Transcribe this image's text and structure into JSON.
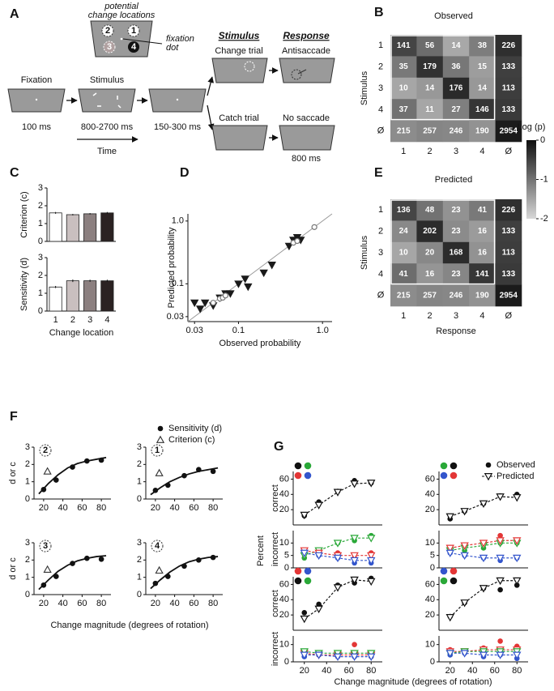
{
  "panel_a": {
    "label": "A",
    "inset": {
      "title_lines": [
        "potential",
        "change locations"
      ],
      "locations": [
        "2",
        "1",
        "3",
        "4"
      ],
      "fixation_lines": [
        "fixation",
        "dot"
      ]
    },
    "sequence": [
      {
        "title": "Fixation",
        "duration": "100 ms"
      },
      {
        "title": "Stimulus",
        "duration": "800-2700 ms"
      },
      {
        "duration": "150-300 ms"
      }
    ],
    "time": "Time",
    "headers": [
      "Stimulus",
      "Response"
    ],
    "trials": [
      {
        "stimulus": "Change trial",
        "response": "Antisaccade"
      },
      {
        "stimulus": "Catch trial",
        "response": "No saccade",
        "duration": "800 ms"
      }
    ]
  },
  "chart_data": [
    {
      "type": "heatmap",
      "panel": "B",
      "title": "Observed",
      "ylabel": "Stimulus",
      "rows": [
        "1",
        "2",
        "3",
        "4",
        "Ø"
      ],
      "columns": [
        "1",
        "2",
        "3",
        "4",
        "Ø"
      ],
      "values": [
        [
          141,
          56,
          14,
          38,
          226
        ],
        [
          35,
          179,
          36,
          15,
          133
        ],
        [
          10,
          14,
          176,
          14,
          113
        ],
        [
          37,
          11,
          27,
          146,
          133
        ],
        [
          215,
          257,
          246,
          190,
          2954
        ]
      ]
    },
    {
      "type": "heatmap",
      "panel": "E",
      "title": "Predicted",
      "ylabel": "Stimulus",
      "xlabel": "Response",
      "rows": [
        "1",
        "2",
        "3",
        "4",
        "Ø"
      ],
      "columns": [
        "1",
        "2",
        "3",
        "4",
        "Ø"
      ],
      "values": [
        [
          136,
          48,
          23,
          41,
          226
        ],
        [
          24,
          202,
          23,
          16,
          133
        ],
        [
          10,
          20,
          168,
          16,
          113
        ],
        [
          41,
          16,
          23,
          141,
          133
        ],
        [
          215,
          257,
          246,
          190,
          2954
        ]
      ],
      "colorbar": {
        "label": "Log (p)",
        "lim": [
          -2,
          0
        ],
        "ticks": [
          0,
          -1,
          -2
        ]
      }
    },
    {
      "type": "bar",
      "panel": "C",
      "ylabel": "Criterion (c)",
      "values": [
        1.6,
        1.5,
        1.55,
        1.6
      ],
      "errors": [
        0.05,
        0.04,
        0.04,
        0.05
      ],
      "colors": [
        "#ffffff",
        "#c9bfbf",
        "#8c8080",
        "#2b2222"
      ],
      "ylim": [
        0,
        3
      ],
      "yticks": [
        0,
        1,
        2,
        3
      ]
    },
    {
      "type": "bar",
      "ylabel": "Sensitivity (d)",
      "xlabel": "Change location",
      "categories": [
        "1",
        "2",
        "3",
        "4"
      ],
      "values": [
        1.35,
        1.7,
        1.7,
        1.7
      ],
      "errors": [
        0.06,
        0.07,
        0.06,
        0.06
      ],
      "colors": [
        "#ffffff",
        "#c9bfbf",
        "#8c8080",
        "#2b2222"
      ],
      "ylim": [
        0,
        3
      ],
      "yticks": [
        0,
        1,
        2,
        3
      ]
    },
    {
      "type": "scatter",
      "panel": "D",
      "xlabel": "Observed probability",
      "ylabel": "Predicted probability",
      "log_scale": true,
      "xlim": [
        0.025,
        1.3
      ],
      "ylim": [
        0.025,
        1.3
      ],
      "xticks": [
        0.03,
        0.1,
        {
          "value": 1,
          "label": "1.0"
        }
      ],
      "yticks": [
        0.03,
        0.1,
        {
          "value": 1,
          "label": "1.0"
        }
      ],
      "series": [
        {
          "marker": "triangle_down",
          "color": "#1a1a1a",
          "x": [
            0.03,
            0.035,
            0.04,
            0.05,
            0.06,
            0.07,
            0.08,
            0.1,
            0.12,
            0.13,
            0.2,
            0.25,
            0.4,
            0.45,
            0.5,
            0.55
          ],
          "values": [
            0.05,
            0.04,
            0.05,
            0.045,
            0.06,
            0.07,
            0.07,
            0.1,
            0.12,
            0.09,
            0.15,
            0.2,
            0.4,
            0.5,
            0.55,
            0.5
          ]
        },
        {
          "marker": "open_circle",
          "color": "#777777",
          "x": [
            0.05,
            0.06,
            0.065,
            0.07,
            0.45,
            0.5,
            0.8
          ],
          "values": [
            0.05,
            0.058,
            0.06,
            0.065,
            0.45,
            0.48,
            0.8
          ]
        }
      ]
    },
    {
      "type": "line",
      "panel": "F",
      "location": "2",
      "ylabel": "d or c",
      "xlim": [
        10,
        90
      ],
      "xticks": [
        20,
        40,
        60,
        80
      ],
      "ylim": [
        0,
        3
      ],
      "yticks": [
        0,
        1,
        2,
        3
      ],
      "series": [
        {
          "marker": "none",
          "color": "#111111",
          "x": [
            15,
            25,
            35,
            45,
            55,
            65,
            75,
            85
          ],
          "values": [
            0.3,
            0.9,
            1.4,
            1.8,
            2.05,
            2.2,
            2.3,
            2.4
          ]
        },
        {
          "marker": "circle",
          "color": "#111111",
          "x": [
            20,
            33,
            50,
            65,
            80
          ],
          "values": [
            0.55,
            1.1,
            1.85,
            2.2,
            2.25
          ]
        },
        {
          "marker": "open_triangle_up",
          "color": "#333333",
          "x": [
            24
          ],
          "values": [
            1.6
          ]
        }
      ]
    },
    {
      "type": "line",
      "location": "1",
      "xlim": [
        10,
        90
      ],
      "xticks": [
        20,
        40,
        60,
        80
      ],
      "ylim": [
        0,
        3
      ],
      "yticks": [
        0,
        1,
        2,
        3
      ],
      "series": [
        {
          "marker": "none",
          "color": "#111111",
          "x": [
            15,
            25,
            35,
            45,
            55,
            65,
            75,
            85
          ],
          "values": [
            0.25,
            0.65,
            1.0,
            1.25,
            1.45,
            1.6,
            1.7,
            1.8
          ]
        },
        {
          "name": "Sensitivity (d)",
          "marker": "circle",
          "color": "#111111",
          "x": [
            20,
            33,
            50,
            65,
            80
          ],
          "values": [
            0.5,
            0.8,
            1.35,
            1.7,
            1.6
          ]
        },
        {
          "name": "Criterion (c)",
          "marker": "open_triangle_up",
          "color": "#333333",
          "x": [
            24
          ],
          "values": [
            1.5
          ]
        }
      ]
    },
    {
      "type": "line",
      "location": "3",
      "ylabel": "d or c",
      "xlabel": "Change magnitude (degrees of rotation)",
      "xlim": [
        10,
        90
      ],
      "xticks": [
        20,
        40,
        60,
        80
      ],
      "ylim": [
        0,
        3
      ],
      "yticks": [
        0,
        1,
        2,
        3
      ],
      "series": [
        {
          "marker": "none",
          "color": "#111111",
          "x": [
            15,
            25,
            35,
            45,
            55,
            65,
            75,
            85
          ],
          "values": [
            0.3,
            0.85,
            1.35,
            1.7,
            1.95,
            2.1,
            2.2,
            2.25
          ]
        },
        {
          "marker": "circle",
          "color": "#111111",
          "x": [
            20,
            33,
            50,
            65,
            80
          ],
          "values": [
            0.55,
            1.05,
            1.8,
            2.1,
            2.05
          ]
        },
        {
          "marker": "open_triangle_up",
          "color": "#333333",
          "x": [
            24
          ],
          "values": [
            1.45
          ]
        }
      ]
    },
    {
      "type": "line",
      "location": "4",
      "xlim": [
        10,
        90
      ],
      "xticks": [
        20,
        40,
        60,
        80
      ],
      "ylim": [
        0,
        3
      ],
      "yticks": [
        0,
        1,
        2,
        3
      ],
      "series": [
        {
          "marker": "none",
          "color": "#111111",
          "x": [
            15,
            25,
            35,
            45,
            55,
            65,
            75,
            85
          ],
          "values": [
            0.35,
            0.85,
            1.3,
            1.65,
            1.9,
            2.05,
            2.15,
            2.2
          ]
        },
        {
          "marker": "circle",
          "color": "#111111",
          "x": [
            20,
            33,
            50,
            65,
            80
          ],
          "values": [
            0.65,
            1.05,
            1.65,
            2.0,
            2.15
          ]
        },
        {
          "marker": "open_triangle_up",
          "color": "#333333",
          "x": [
            24
          ],
          "values": [
            1.4
          ]
        }
      ]
    },
    {
      "type": "line",
      "panel": "G",
      "group_label": "Percent",
      "ylabel": "correct",
      "x": [
        20,
        33,
        50,
        65,
        80
      ],
      "xlim": [
        10,
        90
      ],
      "ylim": [
        0,
        70
      ],
      "yticks": [
        20,
        40,
        60
      ],
      "series": [
        {
          "marker": "circle",
          "color": "#111111",
          "values": [
            12,
            30,
            44,
            58,
            55
          ]
        },
        {
          "marker": "open_triangle_down",
          "line": "dashed",
          "color": "#111111",
          "values": [
            13,
            26,
            43,
            54,
            55
          ]
        }
      ]
    },
    {
      "type": "line",
      "x": [
        20,
        33,
        50,
        65,
        80
      ],
      "xlim": [
        10,
        90
      ],
      "ylim": [
        0,
        70
      ],
      "yticks": [
        20,
        40,
        60
      ],
      "series": [
        {
          "name": "Observed",
          "marker": "circle",
          "color": "#111111",
          "values": [
            8,
            18,
            28,
            38,
            40
          ]
        },
        {
          "name": "Predicted",
          "marker": "open_triangle_down",
          "line": "dashed",
          "color": "#111111",
          "values": [
            11,
            18,
            28,
            37,
            36
          ]
        }
      ]
    },
    {
      "type": "line",
      "ylabel": "incorrect",
      "x": [
        20,
        33,
        50,
        65,
        80
      ],
      "xlim": [
        10,
        90
      ],
      "ylim": [
        0,
        15
      ],
      "yticks": [
        0,
        5,
        10
      ],
      "series": [
        {
          "marker": "circle",
          "color": "#2aa838",
          "values": [
            4,
            7,
            10,
            11,
            13
          ]
        },
        {
          "marker": "circle",
          "color": "#e33636",
          "values": [
            7,
            6,
            6,
            4,
            6
          ]
        },
        {
          "marker": "circle",
          "color": "#3355cc",
          "values": [
            7,
            5,
            4,
            2,
            2
          ]
        },
        {
          "marker": "open_triangle_down",
          "line": "dashed",
          "color": "#2aa838",
          "values": [
            5,
            7,
            10,
            12,
            12
          ]
        },
        {
          "marker": "open_triangle_down",
          "line": "dashed",
          "color": "#e33636",
          "values": [
            7,
            6,
            5,
            5,
            5
          ]
        },
        {
          "marker": "open_triangle_down",
          "line": "dashed",
          "color": "#3355cc",
          "values": [
            6,
            5,
            4,
            3,
            3
          ]
        }
      ]
    },
    {
      "type": "line",
      "x": [
        20,
        33,
        50,
        65,
        80
      ],
      "xlim": [
        10,
        90
      ],
      "ylim": [
        0,
        15
      ],
      "yticks": [
        0,
        5,
        10
      ],
      "series": [
        {
          "marker": "circle",
          "color": "#2aa838",
          "values": [
            7,
            7,
            8,
            10,
            10
          ]
        },
        {
          "marker": "circle",
          "color": "#e33636",
          "values": [
            8,
            9,
            10,
            13,
            11
          ]
        },
        {
          "marker": "circle",
          "color": "#3355cc",
          "values": [
            6,
            5,
            4,
            3,
            4
          ]
        },
        {
          "marker": "open_triangle_down",
          "line": "dashed",
          "color": "#2aa838",
          "values": [
            7,
            8,
            9,
            10,
            10
          ]
        },
        {
          "marker": "open_triangle_down",
          "line": "dashed",
          "color": "#e33636",
          "values": [
            8,
            9,
            10,
            11,
            11
          ]
        },
        {
          "marker": "open_triangle_down",
          "line": "dashed",
          "color": "#3355cc",
          "values": [
            6,
            5,
            4,
            4,
            4
          ]
        }
      ]
    },
    {
      "type": "line",
      "ylabel": "correct",
      "x": [
        20,
        33,
        50,
        65,
        80
      ],
      "xlim": [
        10,
        90
      ],
      "ylim": [
        0,
        70
      ],
      "yticks": [
        20,
        40,
        60
      ],
      "series": [
        {
          "marker": "circle",
          "color": "#111111",
          "values": [
            23,
            34,
            59,
            62,
            68
          ]
        },
        {
          "marker": "open_triangle_down",
          "line": "dashed",
          "color": "#111111",
          "values": [
            15,
            28,
            56,
            66,
            64
          ]
        }
      ]
    },
    {
      "type": "line",
      "x": [
        20,
        33,
        50,
        65,
        80
      ],
      "xlim": [
        10,
        90
      ],
      "ylim": [
        0,
        70
      ],
      "yticks": [
        20,
        40,
        60
      ],
      "series": [
        {
          "marker": "circle",
          "color": "#111111",
          "values": [
            18,
            36,
            55,
            53,
            59
          ]
        },
        {
          "marker": "open_triangle_down",
          "line": "dashed",
          "color": "#111111",
          "values": [
            17,
            36,
            55,
            65,
            65
          ]
        }
      ]
    },
    {
      "type": "line",
      "ylabel": "incorrect",
      "xlabel": "Change magnitude (degrees of rotation)",
      "x": [
        20,
        33,
        50,
        65,
        80
      ],
      "xlim": [
        10,
        90
      ],
      "xticks": [
        20,
        40,
        60,
        80
      ],
      "ylim": [
        0,
        15
      ],
      "yticks": [
        0,
        10
      ],
      "series": [
        {
          "marker": "circle",
          "color": "#e33636",
          "values": [
            5,
            4,
            3,
            10,
            3
          ]
        },
        {
          "marker": "circle",
          "color": "#2aa838",
          "values": [
            5,
            5,
            4,
            5,
            4
          ]
        },
        {
          "marker": "circle",
          "color": "#3355cc",
          "values": [
            3,
            4,
            3,
            3,
            3
          ]
        },
        {
          "marker": "open_triangle_down",
          "line": "dashed",
          "color": "#e33636",
          "values": [
            5,
            4,
            4,
            4,
            4
          ]
        },
        {
          "marker": "open_triangle_down",
          "line": "dashed",
          "color": "#2aa838",
          "values": [
            6,
            5,
            5,
            5,
            5
          ]
        },
        {
          "marker": "open_triangle_down",
          "line": "dashed",
          "color": "#3355cc",
          "values": [
            4,
            4,
            3,
            3,
            3
          ]
        }
      ]
    },
    {
      "type": "line",
      "x": [
        20,
        33,
        50,
        65,
        80
      ],
      "xlim": [
        10,
        90
      ],
      "xticks": [
        20,
        40,
        60,
        80
      ],
      "ylim": [
        0,
        15
      ],
      "yticks": [
        0,
        10
      ],
      "series": [
        {
          "marker": "circle",
          "color": "#e33636",
          "values": [
            7,
            6,
            8,
            12,
            9
          ]
        },
        {
          "marker": "circle",
          "color": "#2aa838",
          "values": [
            5,
            6,
            6,
            7,
            5
          ]
        },
        {
          "marker": "circle",
          "color": "#3355cc",
          "values": [
            4,
            5,
            3,
            4,
            2
          ]
        },
        {
          "marker": "open_triangle_down",
          "line": "dashed",
          "color": "#e33636",
          "values": [
            6,
            6,
            7,
            7,
            7
          ]
        },
        {
          "marker": "open_triangle_down",
          "line": "dashed",
          "color": "#2aa838",
          "values": [
            5,
            6,
            6,
            6,
            6
          ]
        },
        {
          "marker": "open_triangle_down",
          "line": "dashed",
          "color": "#3355cc",
          "values": [
            5,
            5,
            4,
            4,
            4
          ]
        }
      ]
    }
  ]
}
